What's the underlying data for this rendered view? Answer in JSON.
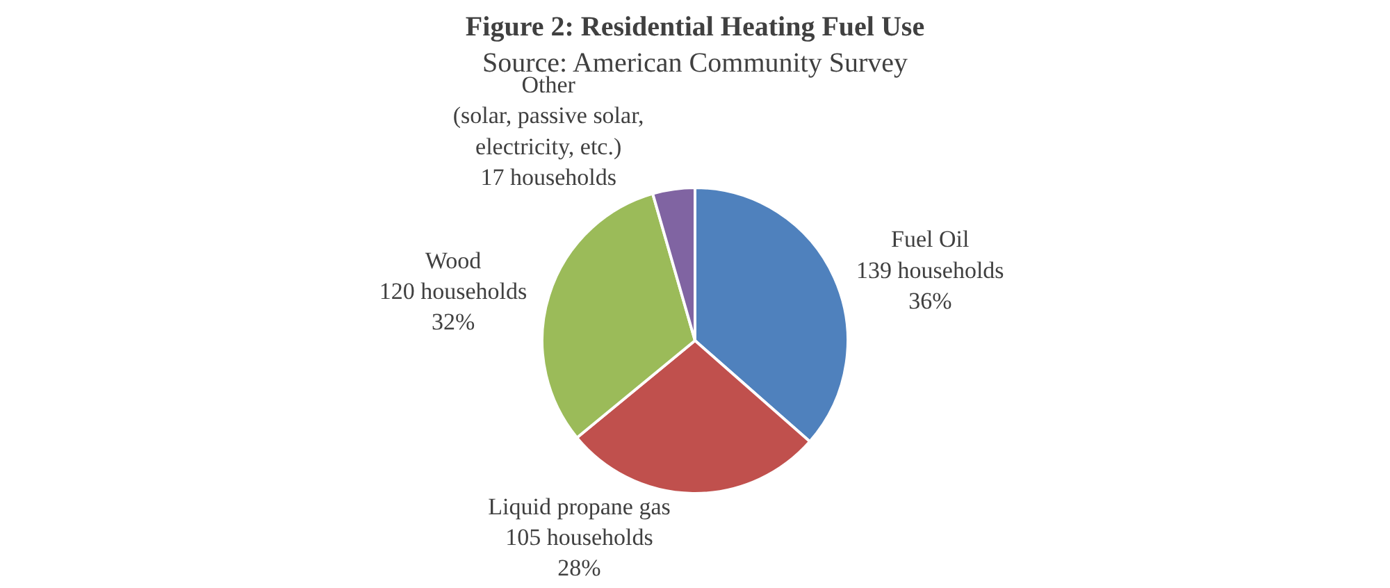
{
  "chart_data": {
    "type": "pie",
    "title": "Figure 2: Residential Heating Fuel Use",
    "subtitle": "Source: American Community Survey",
    "categories": [
      "Fuel Oil",
      "Liquid propane gas",
      "Wood",
      "Other\n(solar, passive solar,\nelectricity, etc.)"
    ],
    "values": [
      139,
      105,
      120,
      17
    ],
    "colors": [
      "#4f81bd",
      "#c0504d",
      "#9bbb59",
      "#8064a2"
    ],
    "value_labels": [
      "139 households\n36%",
      "105 households\n28%",
      "120 households\n32%",
      "17 households"
    ]
  }
}
